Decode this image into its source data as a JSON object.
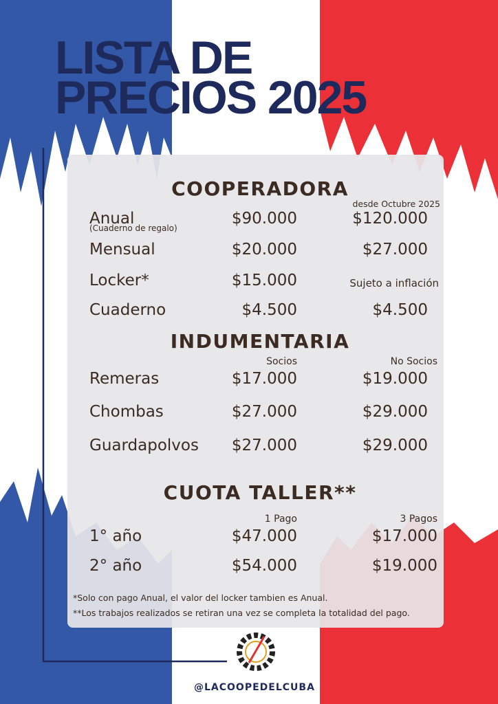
{
  "header": {
    "title_lines": [
      "LISTA DE",
      "PRECIOS 2025"
    ]
  },
  "sections": [
    {
      "title": "COOPERADORA",
      "column_note": "desde Octubre 2025",
      "rows": [
        {
          "label": "Anual",
          "note": "(Cuaderno de regalo)",
          "prices": [
            "$90.000",
            "$120.000"
          ]
        },
        {
          "label": "Mensual",
          "prices": [
            "$20.000",
            "$27.000"
          ]
        },
        {
          "label": "Locker*",
          "prices": [
            "$15.000",
            "Sujeto a inflación"
          ]
        },
        {
          "label": "Cuaderno",
          "prices": [
            "$4.500",
            "$4.500"
          ]
        }
      ]
    },
    {
      "title": "INDUMENTARIA",
      "column_headers": [
        "Socios",
        "No Socios"
      ],
      "rows": [
        {
          "label": "Remeras",
          "prices": [
            "$17.000",
            "$19.000"
          ]
        },
        {
          "label": "Chombas",
          "prices": [
            "$27.000",
            "$29.000"
          ]
        },
        {
          "label": "Guardapolvos",
          "prices": [
            "$27.000",
            "$29.000"
          ]
        }
      ]
    },
    {
      "title": "CUOTA TALLER**",
      "column_headers": [
        "1 Pago",
        "3 Pagos"
      ],
      "rows": [
        {
          "label": "1° año",
          "prices": [
            "$47.000",
            "$17.000"
          ]
        },
        {
          "label": "2° año",
          "prices": [
            "$54.000",
            "$19.000"
          ]
        }
      ]
    }
  ],
  "footnotes": [
    "*Solo con pago Anual, el valor del locker tambien es Anual.",
    "**Los trabajos realizados se retiran una vez se completa la totalidad del pago."
  ],
  "footer": {
    "handle": "@LACOOPEDELCUBA"
  }
}
